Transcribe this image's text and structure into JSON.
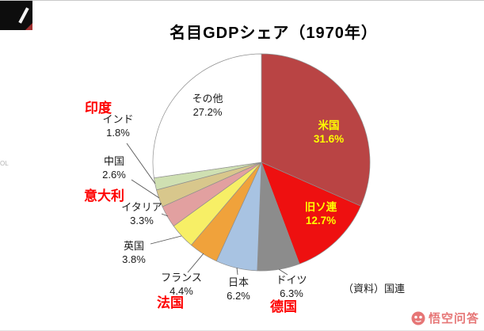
{
  "title": "名目GDPシェア（1970年）",
  "source": "（資料）国連",
  "edge_text": "OL",
  "watermark": {
    "text": "悟空问答"
  },
  "annotations": [
    {
      "text": "印度"
    },
    {
      "text": "意大利"
    },
    {
      "text": "法国"
    },
    {
      "text": "德国"
    }
  ],
  "chart_data": {
    "type": "pie",
    "title": "名目GDPシェア（1970年）",
    "unit": "percent",
    "direction": "clockwise",
    "start_angle_deg": 0,
    "legend": "none",
    "slices": [
      {
        "name": "米国",
        "value": 31.6,
        "pct_text": "31.6%",
        "color": "#b94444",
        "label_style": "inside-yellow"
      },
      {
        "name": "旧ソ連",
        "value": 12.7,
        "pct_text": "12.7%",
        "color": "#ee1010",
        "label_style": "inside-yellow"
      },
      {
        "name": "ドイツ",
        "value": 6.3,
        "pct_text": "6.3%",
        "color": "#8c8c8c",
        "label_style": "outside"
      },
      {
        "name": "日本",
        "value": 6.2,
        "pct_text": "6.2%",
        "color": "#a8c3e2",
        "label_style": "outside"
      },
      {
        "name": "フランス",
        "value": 4.4,
        "pct_text": "4.4%",
        "color": "#f0a23b",
        "label_style": "outside"
      },
      {
        "name": "英国",
        "value": 3.8,
        "pct_text": "3.8%",
        "color": "#f7ef66",
        "label_style": "outside"
      },
      {
        "name": "イタリア",
        "value": 3.3,
        "pct_text": "3.3%",
        "color": "#e2a0a0",
        "label_style": "outside"
      },
      {
        "name": "中国",
        "value": 2.6,
        "pct_text": "2.6%",
        "color": "#d8c78c",
        "label_style": "outside"
      },
      {
        "name": "インド",
        "value": 1.8,
        "pct_text": "1.8%",
        "color": "#cfe0b2",
        "label_style": "outside"
      },
      {
        "name": "その他",
        "value": 27.2,
        "pct_text": "27.2%",
        "color": "#ffffff",
        "label_style": "inside-black"
      }
    ]
  }
}
